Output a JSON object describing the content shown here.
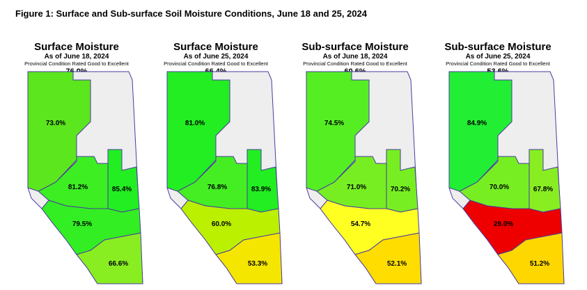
{
  "title": "Figure 1: Surface and Sub-surface Soil Moisture Conditions, June 18 and 25, 2024",
  "maps": [
    {
      "title": "Surface Moisture",
      "date": "As of June 18, 2024",
      "note": "Provincial Condition Rated Good to Excellent",
      "provincial": "76.0%",
      "regions": [
        {
          "label": "73.0%",
          "color": "#5ce61e"
        },
        {
          "label": "81.2%",
          "color": "#3cee22"
        },
        {
          "label": "85.4%",
          "color": "#22ee22"
        },
        {
          "label": "79.5%",
          "color": "#33ee22"
        },
        {
          "label": "66.6%",
          "color": "#88ee22"
        }
      ]
    },
    {
      "title": "Surface Moisture",
      "date": "As of June 25, 2024",
      "note": "Provincial Condition Rated Good to Excellent",
      "provincial": "66.4%",
      "regions": [
        {
          "label": "81.0%",
          "color": "#22ee22"
        },
        {
          "label": "76.8%",
          "color": "#44ee22"
        },
        {
          "label": "83.9%",
          "color": "#22ee22"
        },
        {
          "label": "60.0%",
          "color": "#bbf000"
        },
        {
          "label": "53.3%",
          "color": "#f5e600"
        }
      ]
    },
    {
      "title": "Sub-surface Moisture",
      "date": "As of June 18, 2024",
      "note": "Provincial Condition Rated Good to Excellent",
      "provincial": "60.6%",
      "regions": [
        {
          "label": "74.5%",
          "color": "#55ee22"
        },
        {
          "label": "71.0%",
          "color": "#77ee22"
        },
        {
          "label": "70.2%",
          "color": "#77ee22"
        },
        {
          "label": "54.7%",
          "color": "#ffff22"
        },
        {
          "label": "52.1%",
          "color": "#ffdd00"
        }
      ]
    },
    {
      "title": "Sub-surface Moisture",
      "date": "As of June 25, 2024",
      "note": "Provincial Condition Rated Good to Excellent",
      "provincial": "53.6%",
      "regions": [
        {
          "label": "84.9%",
          "color": "#22ee33"
        },
        {
          "label": "70.0%",
          "color": "#77ee22"
        },
        {
          "label": "67.8%",
          "color": "#88ee22"
        },
        {
          "label": "29.0%",
          "color": "#ee0000"
        },
        {
          "label": "51.2%",
          "color": "#ffd700"
        }
      ]
    }
  ]
}
